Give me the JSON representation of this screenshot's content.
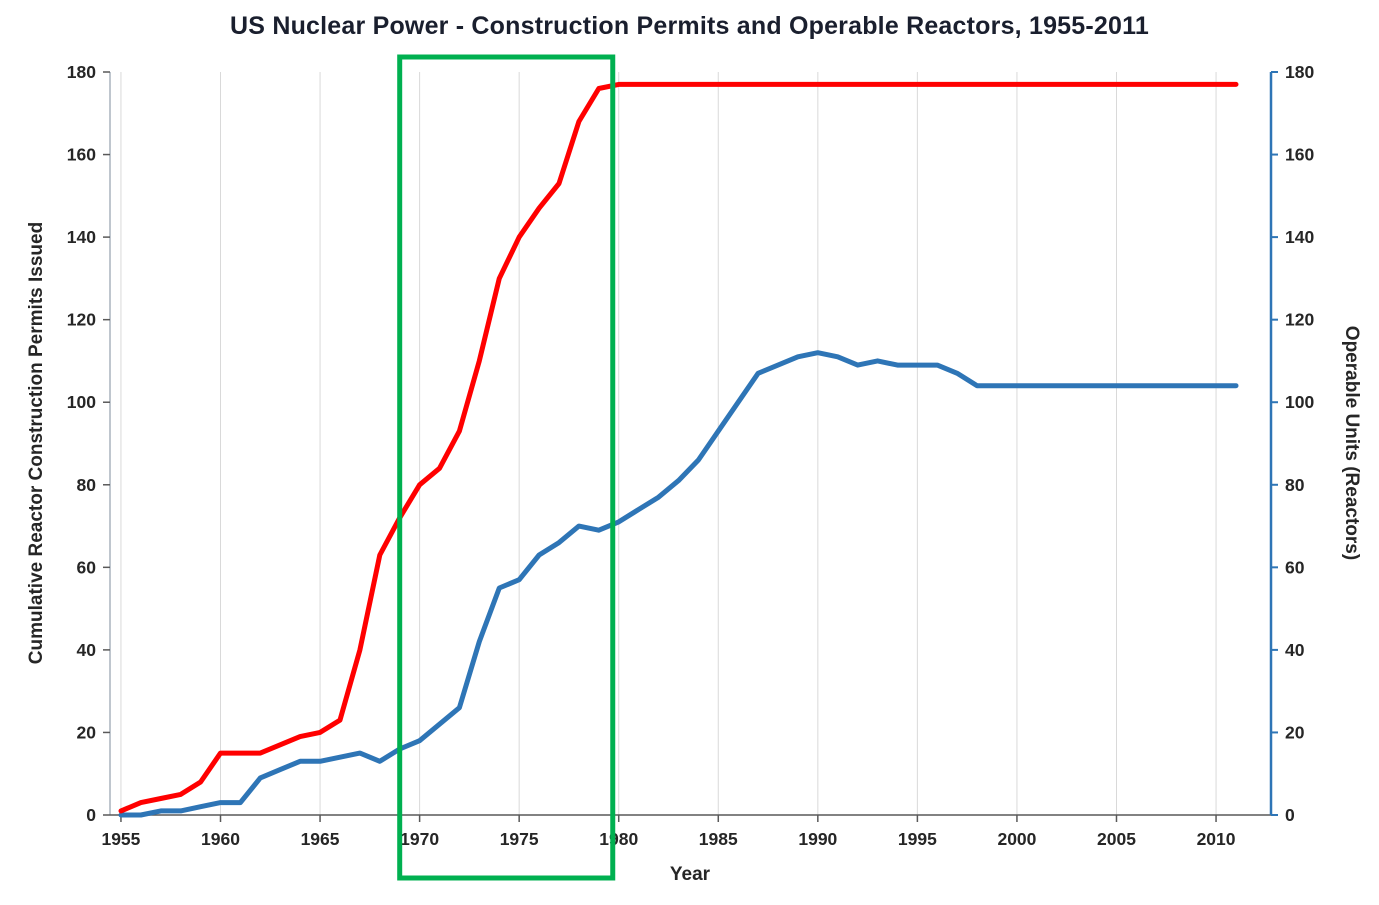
{
  "chart_data": {
    "type": "line",
    "title": "US Nuclear Power - Construction Permits and Operable Reactors, 1955-2011",
    "xlabel": "Year",
    "ylabel_left": "Cumulative Reactor Construction Permits Issued",
    "ylabel_right": "Operable Units (Reactors)",
    "xlim": [
      1954.45,
      2012.76
    ],
    "ylim": [
      0,
      180
    ],
    "x_ticks": [
      1955,
      1960,
      1965,
      1970,
      1975,
      1980,
      1985,
      1990,
      1995,
      2000,
      2005,
      2010
    ],
    "y_ticks": [
      0,
      20,
      40,
      60,
      80,
      100,
      120,
      140,
      160,
      180
    ],
    "grid": "vertical-only",
    "legend_position": "none",
    "years": [
      1955,
      1956,
      1957,
      1958,
      1959,
      1960,
      1961,
      1962,
      1963,
      1964,
      1965,
      1966,
      1967,
      1968,
      1969,
      1970,
      1971,
      1972,
      1973,
      1974,
      1975,
      1976,
      1977,
      1978,
      1979,
      1980,
      1981,
      1982,
      1983,
      1984,
      1985,
      1986,
      1987,
      1988,
      1989,
      1990,
      1991,
      1992,
      1993,
      1994,
      1995,
      1996,
      1997,
      1998,
      1999,
      2000,
      2001,
      2002,
      2003,
      2004,
      2005,
      2006,
      2007,
      2008,
      2009,
      2010,
      2011
    ],
    "series": [
      {
        "name": "Cumulative Reactor Construction Permits Issued",
        "axis": "left",
        "color": "#FF0000",
        "values": [
          1,
          3,
          4,
          5,
          8,
          15,
          15,
          15,
          17,
          19,
          20,
          23,
          40,
          63,
          72,
          80,
          84,
          93,
          110,
          130,
          140,
          147,
          153,
          168,
          176,
          177,
          177,
          177,
          177,
          177,
          177,
          177,
          177,
          177,
          177,
          177,
          177,
          177,
          177,
          177,
          177,
          177,
          177,
          177,
          177,
          177,
          177,
          177,
          177,
          177,
          177,
          177,
          177,
          177,
          177,
          177,
          177
        ]
      },
      {
        "name": "Operable Units (Reactors)",
        "axis": "right",
        "color": "#2E75B6",
        "values": [
          0,
          0,
          1,
          1,
          2,
          3,
          3,
          9,
          11,
          13,
          13,
          14,
          15,
          13,
          16,
          18,
          22,
          26,
          42,
          55,
          57,
          63,
          66,
          70,
          69,
          71,
          74,
          77,
          81,
          86,
          93,
          100,
          107,
          109,
          111,
          112,
          111,
          109,
          110,
          109,
          109,
          109,
          107,
          104,
          104,
          104,
          104,
          104,
          104,
          104,
          104,
          104,
          104,
          104,
          104,
          104,
          104
        ]
      }
    ],
    "annotation": {
      "type": "rect-highlight",
      "color": "#00B050",
      "x1": 1969,
      "x2": 1979.7,
      "meaning": "highlighted period 1969-1980"
    },
    "style": {
      "gridline_color": "#d9d9d9",
      "spine_color": "#595959",
      "right_spine_color": "#2E75B6",
      "line_width": 5
    }
  }
}
